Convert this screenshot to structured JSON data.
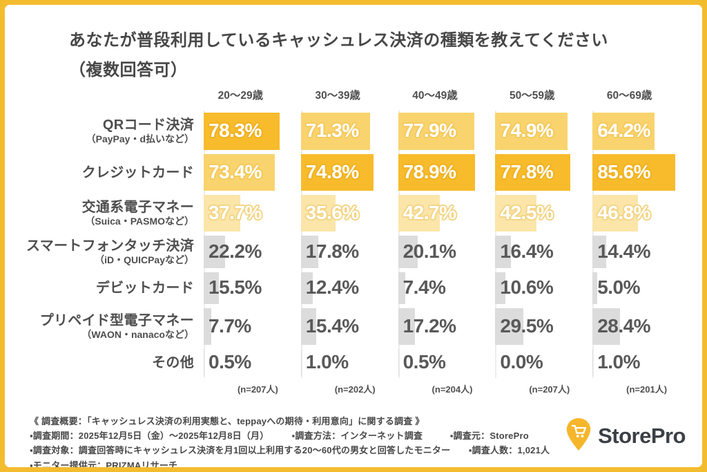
{
  "title": {
    "line1": "あなたが普段利用しているキャッシュレス決済の種類を教えてください",
    "line2": "（複数回答可）"
  },
  "chart_data": {
    "type": "bar",
    "orientation": "horizontal",
    "unit": "%",
    "xlim": [
      0,
      100
    ],
    "categories": [
      "20〜29歳",
      "30〜39歳",
      "40〜49歳",
      "50〜59歳",
      "60〜69歳"
    ],
    "sample_sizes": [
      "(n=207人)",
      "(n=202人)",
      "(n=204人)",
      "(n=207人)",
      "(n=201人)"
    ],
    "series": [
      {
        "label": "QRコード決済",
        "sublabel": "（PayPay・d払いなど）",
        "values": [
          78.3,
          71.3,
          77.9,
          74.9,
          64.2
        ],
        "levels": [
          "dark",
          "mid",
          "mid",
          "mid",
          "mid"
        ]
      },
      {
        "label": "クレジットカード",
        "sublabel": "",
        "values": [
          73.4,
          74.8,
          78.9,
          77.8,
          85.6
        ],
        "levels": [
          "mid",
          "dark",
          "dark",
          "dark",
          "dark"
        ]
      },
      {
        "label": "交通系電子マネー",
        "sublabel": "（Suica・PASMOなど）",
        "values": [
          37.7,
          35.6,
          42.7,
          42.5,
          46.8
        ],
        "levels": [
          "light",
          "light",
          "light",
          "light",
          "light"
        ]
      },
      {
        "label": "スマートフォンタッチ決済",
        "sublabel": "（iD・QUICPayなど）",
        "values": [
          22.2,
          17.8,
          20.1,
          16.4,
          14.4
        ],
        "levels": [
          "gray",
          "gray",
          "gray",
          "gray",
          "gray"
        ]
      },
      {
        "label": "デビットカード",
        "sublabel": "",
        "values": [
          15.5,
          12.4,
          7.4,
          10.6,
          5.0
        ],
        "levels": [
          "gray",
          "gray",
          "gray",
          "gray",
          "gray"
        ]
      },
      {
        "label": "プリペイド型電子マネー",
        "sublabel": "（WAON・nanacoなど）",
        "values": [
          7.7,
          15.4,
          17.2,
          29.5,
          28.4
        ],
        "levels": [
          "gray",
          "gray",
          "gray",
          "gray",
          "gray"
        ]
      },
      {
        "label": "その他",
        "sublabel": "",
        "values": [
          0.5,
          1.0,
          0.5,
          0.0,
          1.0
        ],
        "levels": [
          "gray",
          "gray",
          "gray",
          "gray",
          "gray"
        ]
      }
    ],
    "palette": {
      "dark": "#F7BB2B",
      "mid": "#F9D36D",
      "light": "#FBE5A9",
      "gray": "#DCDCDC"
    },
    "frame_color": "#F3BC2F",
    "legend": "none",
    "grid": "off"
  },
  "footer": {
    "lines": [
      "《 調査概要：「キャッシュレス決済の利用実態と、teppayへの期待・利用意向」に関する調査 》",
      "▪調査期間：2025年12月5日（金）〜2025年12月8日（月）　　　▪調査方法：インターネット調査　　　▪調査元：StorePro",
      "▪調査対象：調査回答時にキャッシュレス決済を月1回以上利用する20〜60代の男女と回答したモニター　　▪調査人数：1,021人",
      "▪モニター提供元：PRIZMAリサーチ"
    ]
  },
  "logo": {
    "text": "StorePro",
    "icon": "cart-pin-icon",
    "pin_color": "#F6B62C",
    "text_color": "#3A4046"
  }
}
